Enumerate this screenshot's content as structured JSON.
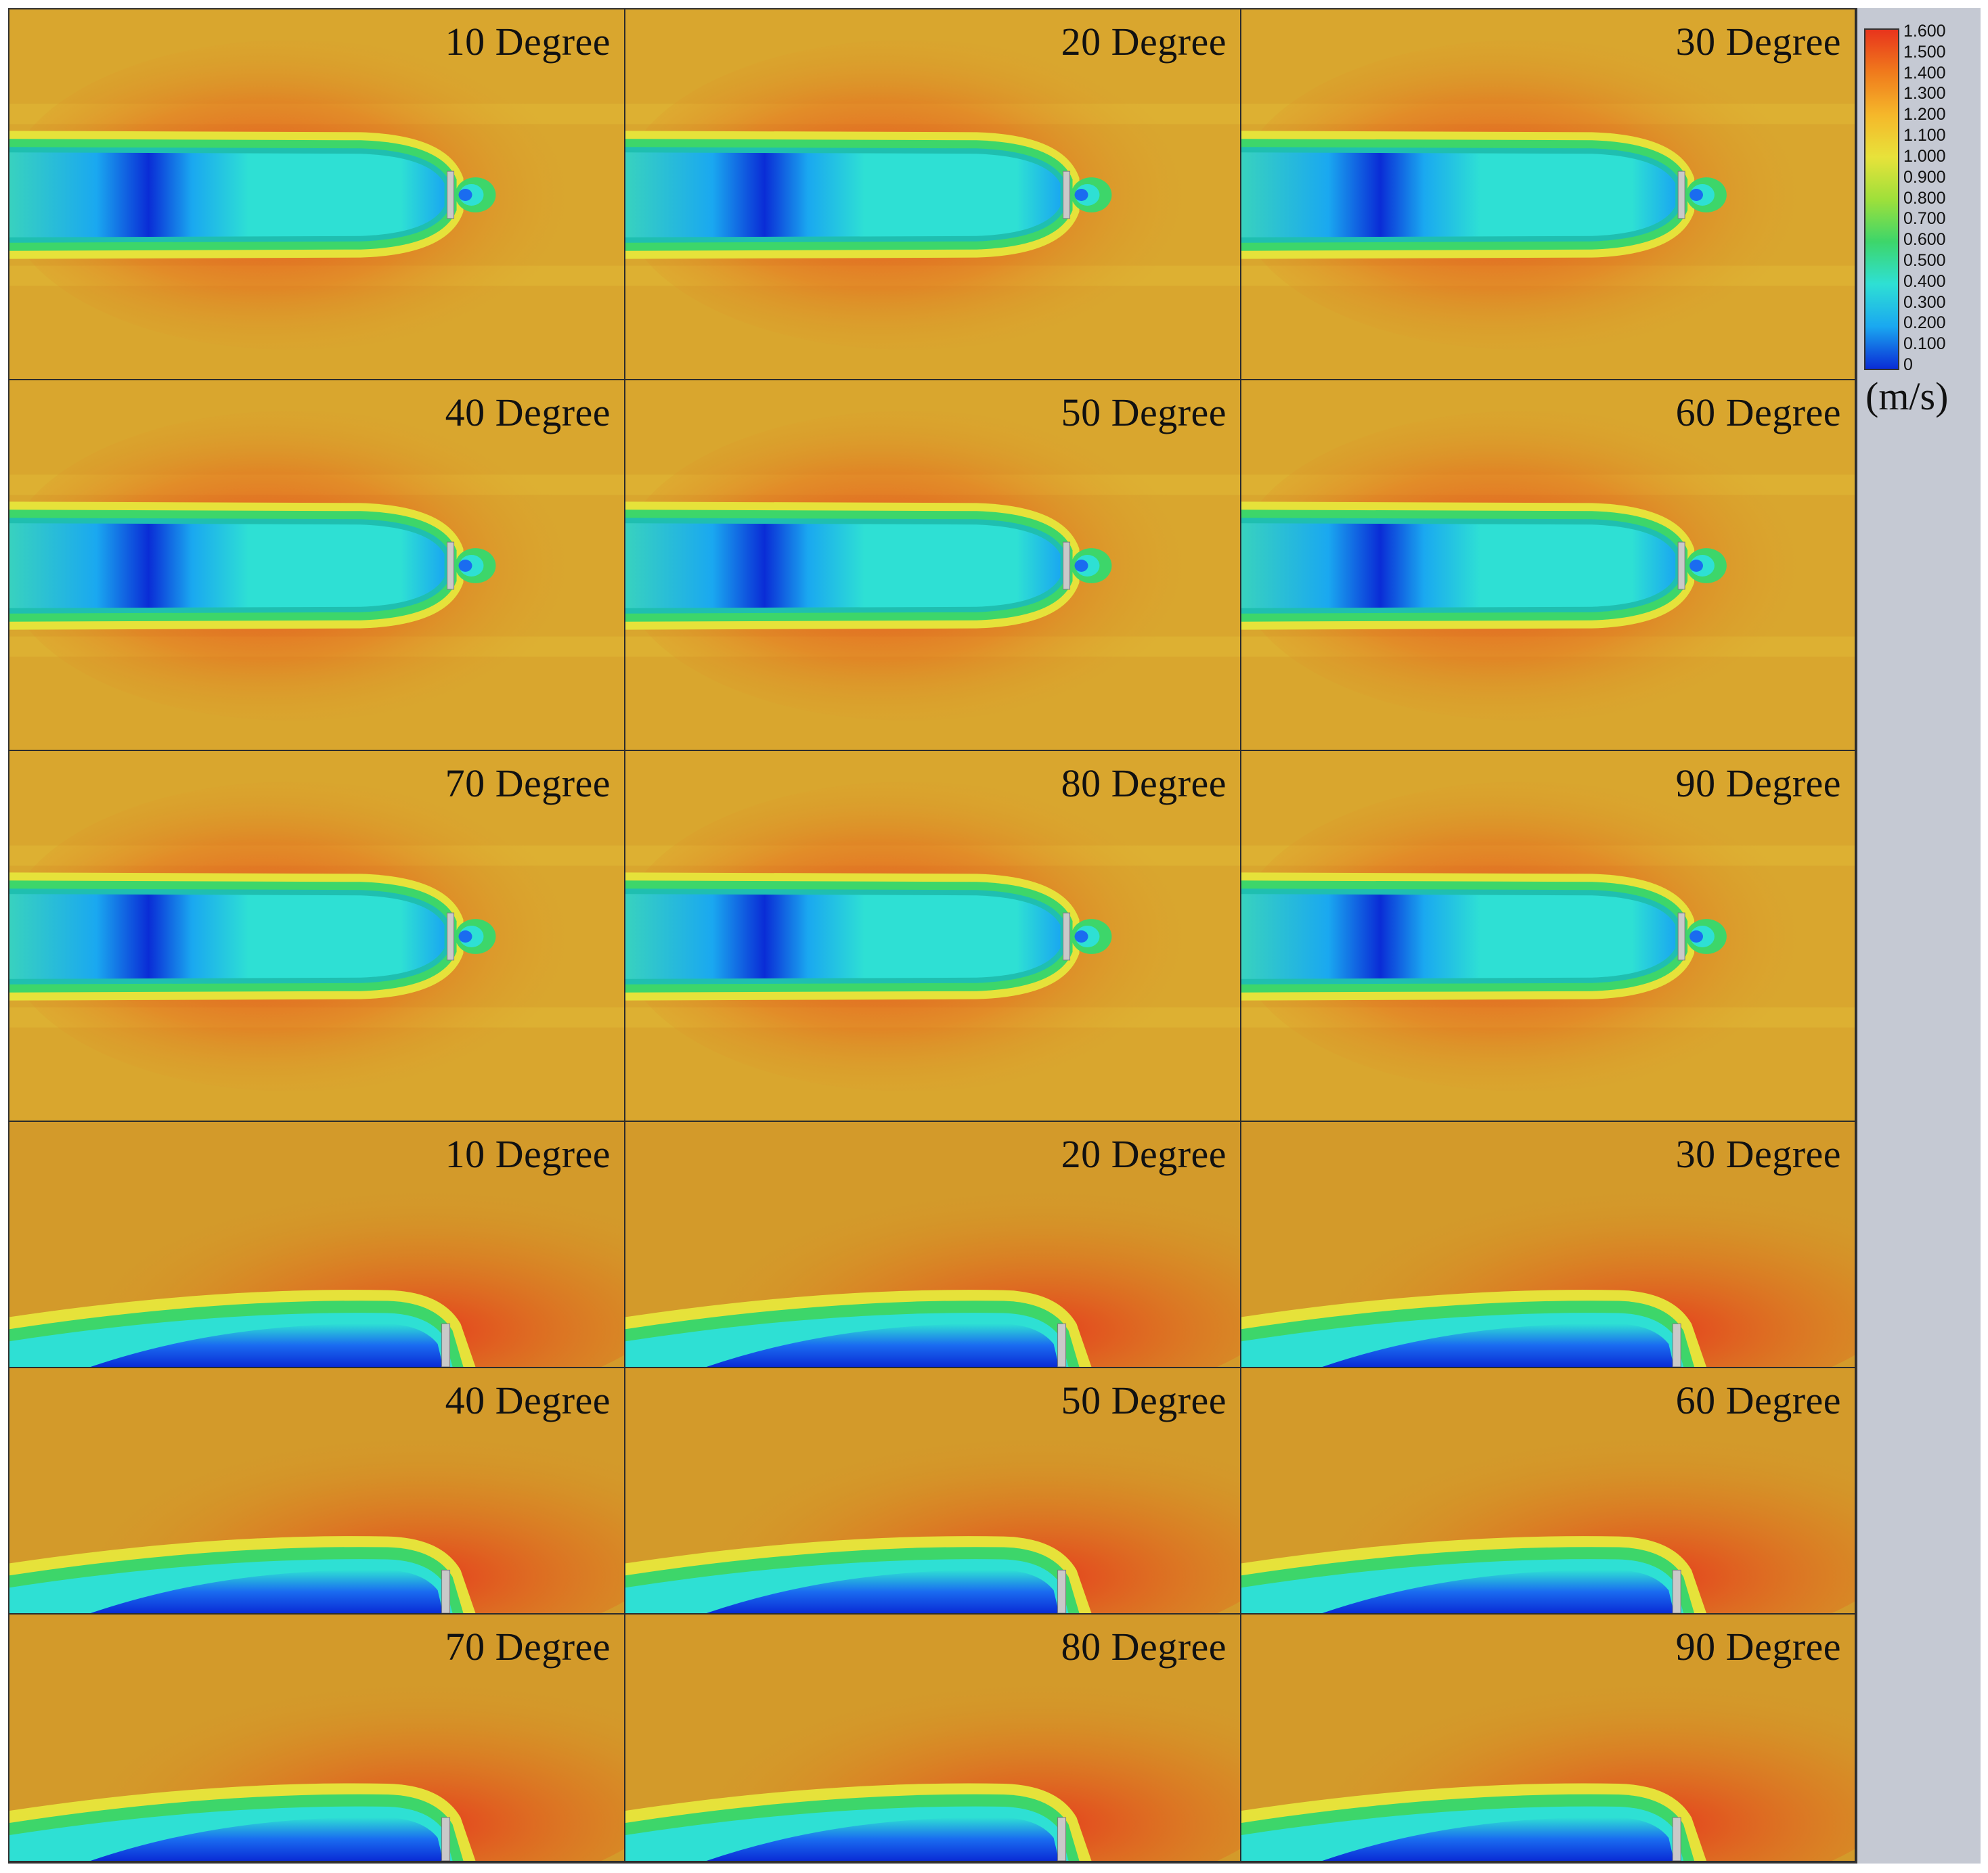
{
  "colors": {
    "background": "#d9a62e",
    "velocity_low": "#0a2cd6",
    "velocity_mid": "#2ee0d4",
    "velocity_high": "#e8341c"
  },
  "panels": [
    {
      "label": "10 Degree",
      "view": "top"
    },
    {
      "label": "20 Degree",
      "view": "top"
    },
    {
      "label": "30 Degree",
      "view": "top"
    },
    {
      "label": "40 Degree",
      "view": "top"
    },
    {
      "label": "50 Degree",
      "view": "top"
    },
    {
      "label": "60 Degree",
      "view": "top"
    },
    {
      "label": "70 Degree",
      "view": "top"
    },
    {
      "label": "80 Degree",
      "view": "top"
    },
    {
      "label": "90 Degree",
      "view": "top"
    },
    {
      "label": "10 Degree",
      "view": "side"
    },
    {
      "label": "20 Degree",
      "view": "side"
    },
    {
      "label": "30 Degree",
      "view": "side"
    },
    {
      "label": "40 Degree",
      "view": "side"
    },
    {
      "label": "50 Degree",
      "view": "side"
    },
    {
      "label": "60 Degree",
      "view": "side"
    },
    {
      "label": "70 Degree",
      "view": "side"
    },
    {
      "label": "80 Degree",
      "view": "side"
    },
    {
      "label": "90 Degree",
      "view": "side"
    }
  ],
  "legend": {
    "ticks": [
      "1.600",
      "1.500",
      "1.400",
      "1.300",
      "1.200",
      "1.100",
      "1.000",
      "0.900",
      "0.800",
      "0.700",
      "0.600",
      "0.500",
      "0.400",
      "0.300",
      "0.200",
      "0.100",
      "0"
    ],
    "unit": "(m/s)",
    "gradient": [
      "#e8341c",
      "#f07a1c",
      "#f5b72a",
      "#e8e23a",
      "#9fe03a",
      "#3dd66a",
      "#2ee0d4",
      "#1aa8f0",
      "#0a2cd6"
    ]
  }
}
